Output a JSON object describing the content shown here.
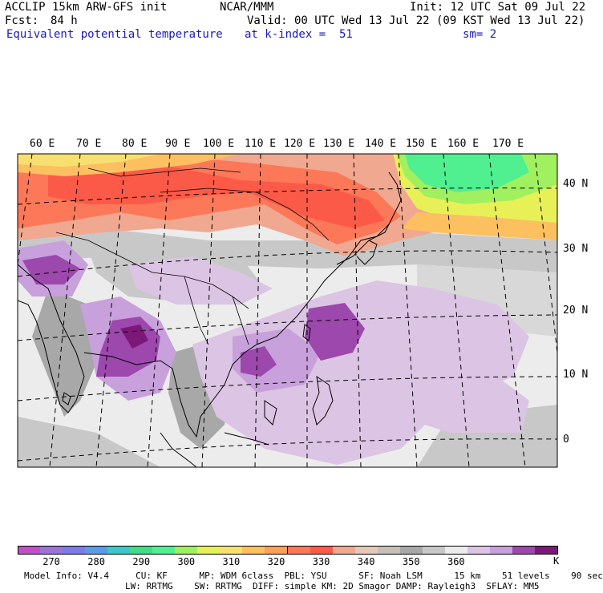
{
  "header": {
    "model": "ACCLIP 15km ARW-GFS init",
    "org": "NCAR/MMM",
    "init": "Init: 12 UTC Sat 09 Jul 22",
    "fcst_label": "Fcst:",
    "fcst_value": "84 h",
    "valid": "Valid: 00 UTC Wed 13 Jul 22 (09 KST Wed 13 Jul 22)",
    "field": "Equivalent potential temperature",
    "level": "at k-index =  51",
    "smoothing": "sm= 2"
  },
  "map": {
    "lon_labels": [
      "60 E",
      "70 E",
      "80 E",
      "90 E",
      "100 E",
      "110 E",
      "120 E",
      "130 E",
      "140 E",
      "150 E",
      "160 E",
      "170 E"
    ],
    "lat_labels": [
      "40 N",
      "30 N",
      "20 N",
      "10 N",
      "0"
    ]
  },
  "colorbar": {
    "unit": "K",
    "ticks": [
      "270",
      "280",
      "290",
      "300",
      "310",
      "320",
      "330",
      "340",
      "350",
      "360"
    ],
    "colors": [
      "#c050c8",
      "#9c74d8",
      "#7c7ce8",
      "#5a9ce8",
      "#3cc8c8",
      "#40dc88",
      "#50f090",
      "#a0f060",
      "#e8f058",
      "#f8e070",
      "#fcc060",
      "#fca058",
      "#fc7858",
      "#fc5a48",
      "#f0a890",
      "#e8c8b8",
      "#c8c0b8",
      "#a8a8a8",
      "#c8c8c8",
      "#ececec",
      "#dcc4e4",
      "#c8a0dc",
      "#9c48ac",
      "#7c1878"
    ]
  },
  "footer": {
    "line1": "Model Info: V4.4     CU: KF      MP: WDM 6class  PBL: YSU      SF: Noah LSM      15 km    51 levels    90 sec",
    "line2": "LW: RRTMG    SW: RRTMG  DIFF: simple KM: 2D Smagor DAMP: Rayleigh3  SFLAY: MM5"
  }
}
